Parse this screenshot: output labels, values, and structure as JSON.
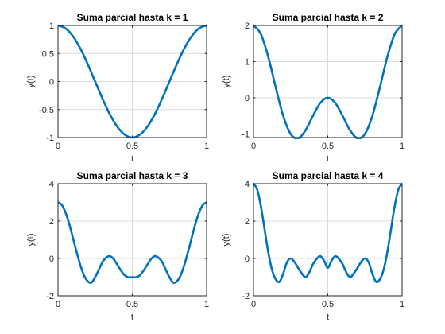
{
  "chart_data": [
    {
      "type": "line",
      "title": "Suma parcial hasta k = 1",
      "xlabel": "t",
      "ylabel": "y(t)",
      "xlim": [
        0,
        1
      ],
      "ylim": [
        -1,
        1
      ],
      "xticks": [
        0,
        0.5,
        1
      ],
      "xtick_labels": [
        "0",
        "0.5",
        "1"
      ],
      "yticks": [
        -1,
        -0.5,
        0,
        0.5,
        1
      ],
      "ytick_labels": [
        "-1",
        "-0.5",
        "0",
        "0.5",
        "1"
      ],
      "grid": true,
      "color": "#0072BD",
      "series": [
        {
          "x": [
            0,
            0.05,
            0.1,
            0.15,
            0.2,
            0.25,
            0.3,
            0.35,
            0.4,
            0.45,
            0.5,
            0.55,
            0.6,
            0.65,
            0.7,
            0.75,
            0.8,
            0.85,
            0.9,
            0.95,
            1
          ],
          "y": [
            1,
            0.95,
            0.81,
            0.59,
            0.31,
            0,
            -0.31,
            -0.59,
            -0.81,
            -0.95,
            -1,
            -0.95,
            -0.81,
            -0.59,
            -0.31,
            0,
            0.31,
            0.59,
            0.81,
            0.95,
            1
          ]
        }
      ]
    },
    {
      "type": "line",
      "title": "Suma parcial hasta k = 2",
      "xlabel": "t",
      "ylabel": "y(t)",
      "xlim": [
        0,
        1
      ],
      "ylim": [
        -1.1,
        2
      ],
      "xticks": [
        0,
        0.5,
        1
      ],
      "xtick_labels": [
        "0",
        "0.5",
        "1"
      ],
      "yticks": [
        -1,
        0,
        1,
        2
      ],
      "ytick_labels": [
        "-1",
        "0",
        "1",
        "2"
      ],
      "grid": true,
      "color": "#0072BD",
      "series": [
        {
          "x": [
            0,
            0.05,
            0.1,
            0.15,
            0.2,
            0.25,
            0.3,
            0.35,
            0.4,
            0.45,
            0.5,
            0.55,
            0.6,
            0.65,
            0.7,
            0.75,
            0.8,
            0.85,
            0.9,
            0.95,
            1
          ],
          "y": [
            2,
            1.76,
            1.12,
            0.28,
            -0.5,
            -1,
            -1.12,
            -0.9,
            -0.5,
            -0.14,
            0,
            -0.14,
            -0.5,
            -0.9,
            -1.12,
            -1,
            -0.5,
            0.28,
            1.12,
            1.76,
            2
          ]
        }
      ]
    },
    {
      "type": "line",
      "title": "Suma parcial hasta k = 3",
      "xlabel": "t",
      "ylabel": "y(t)",
      "xlim": [
        0,
        1
      ],
      "ylim": [
        -2,
        4
      ],
      "xticks": [
        0,
        0.5,
        1
      ],
      "xtick_labels": [
        "0",
        "0.5",
        "1"
      ],
      "yticks": [
        -2,
        0,
        2,
        4
      ],
      "ytick_labels": [
        "-2",
        "0",
        "2",
        "4"
      ],
      "grid": true,
      "color": "#0072BD",
      "series": [
        {
          "x": [
            0,
            0.025,
            0.05,
            0.075,
            0.1,
            0.125,
            0.15,
            0.175,
            0.2,
            0.225,
            0.25,
            0.275,
            0.3,
            0.325,
            0.35,
            0.375,
            0.4,
            0.425,
            0.45,
            0.475,
            0.5,
            0.525,
            0.55,
            0.575,
            0.6,
            0.625,
            0.65,
            0.675,
            0.7,
            0.725,
            0.75,
            0.775,
            0.8,
            0.825,
            0.85,
            0.875,
            0.9,
            0.925,
            0.95,
            0.975,
            1
          ],
          "y": [
            3,
            2.87,
            2.47,
            1.86,
            1.12,
            0.35,
            -0.35,
            -0.9,
            -1.22,
            -1.29,
            -1,
            -0.6,
            -0.18,
            0.05,
            0.12,
            -0.04,
            -0.35,
            -0.66,
            -0.91,
            -1.01,
            -1,
            -1.01,
            -0.91,
            -0.66,
            -0.35,
            -0.04,
            0.12,
            0.05,
            -0.18,
            -0.6,
            -1,
            -1.29,
            -1.22,
            -0.9,
            -0.35,
            0.35,
            1.12,
            1.86,
            2.47,
            2.87,
            3
          ]
        }
      ]
    },
    {
      "type": "line",
      "title": "Suma parcial hasta k = 4",
      "xlabel": "t",
      "ylabel": "y(t)",
      "xlim": [
        0,
        1
      ],
      "ylim": [
        -2,
        4
      ],
      "xticks": [
        0,
        0.5,
        1
      ],
      "xtick_labels": [
        "0",
        "0.5",
        "1"
      ],
      "yticks": [
        -2,
        0,
        2,
        4
      ],
      "ytick_labels": [
        "-2",
        "0",
        "2",
        "4"
      ],
      "grid": true,
      "color": "#0072BD",
      "series": [
        {
          "x": [
            0,
            0.025,
            0.05,
            0.075,
            0.1,
            0.125,
            0.15,
            0.175,
            0.2,
            0.225,
            0.25,
            0.275,
            0.3,
            0.325,
            0.35,
            0.375,
            0.4,
            0.425,
            0.45,
            0.475,
            0.5,
            0.525,
            0.55,
            0.575,
            0.6,
            0.625,
            0.65,
            0.675,
            0.7,
            0.725,
            0.75,
            0.775,
            0.8,
            0.825,
            0.85,
            0.875,
            0.9,
            0.925,
            0.95,
            0.975,
            1
          ],
          "y": [
            4,
            3.68,
            2.79,
            1.54,
            0.31,
            -0.62,
            -1.12,
            -1.25,
            -0.81,
            -0.21,
            0,
            -0.18,
            -0.5,
            -0.8,
            -1,
            -0.75,
            -0.31,
            -0.02,
            0.12,
            -0.12,
            -0.5,
            -0.12,
            0.12,
            -0.02,
            -0.31,
            -0.75,
            -1,
            -0.8,
            -0.5,
            -0.18,
            0,
            -0.21,
            -0.81,
            -1.25,
            -1.12,
            -0.62,
            0.31,
            1.54,
            2.79,
            3.68,
            4
          ]
        }
      ]
    }
  ]
}
